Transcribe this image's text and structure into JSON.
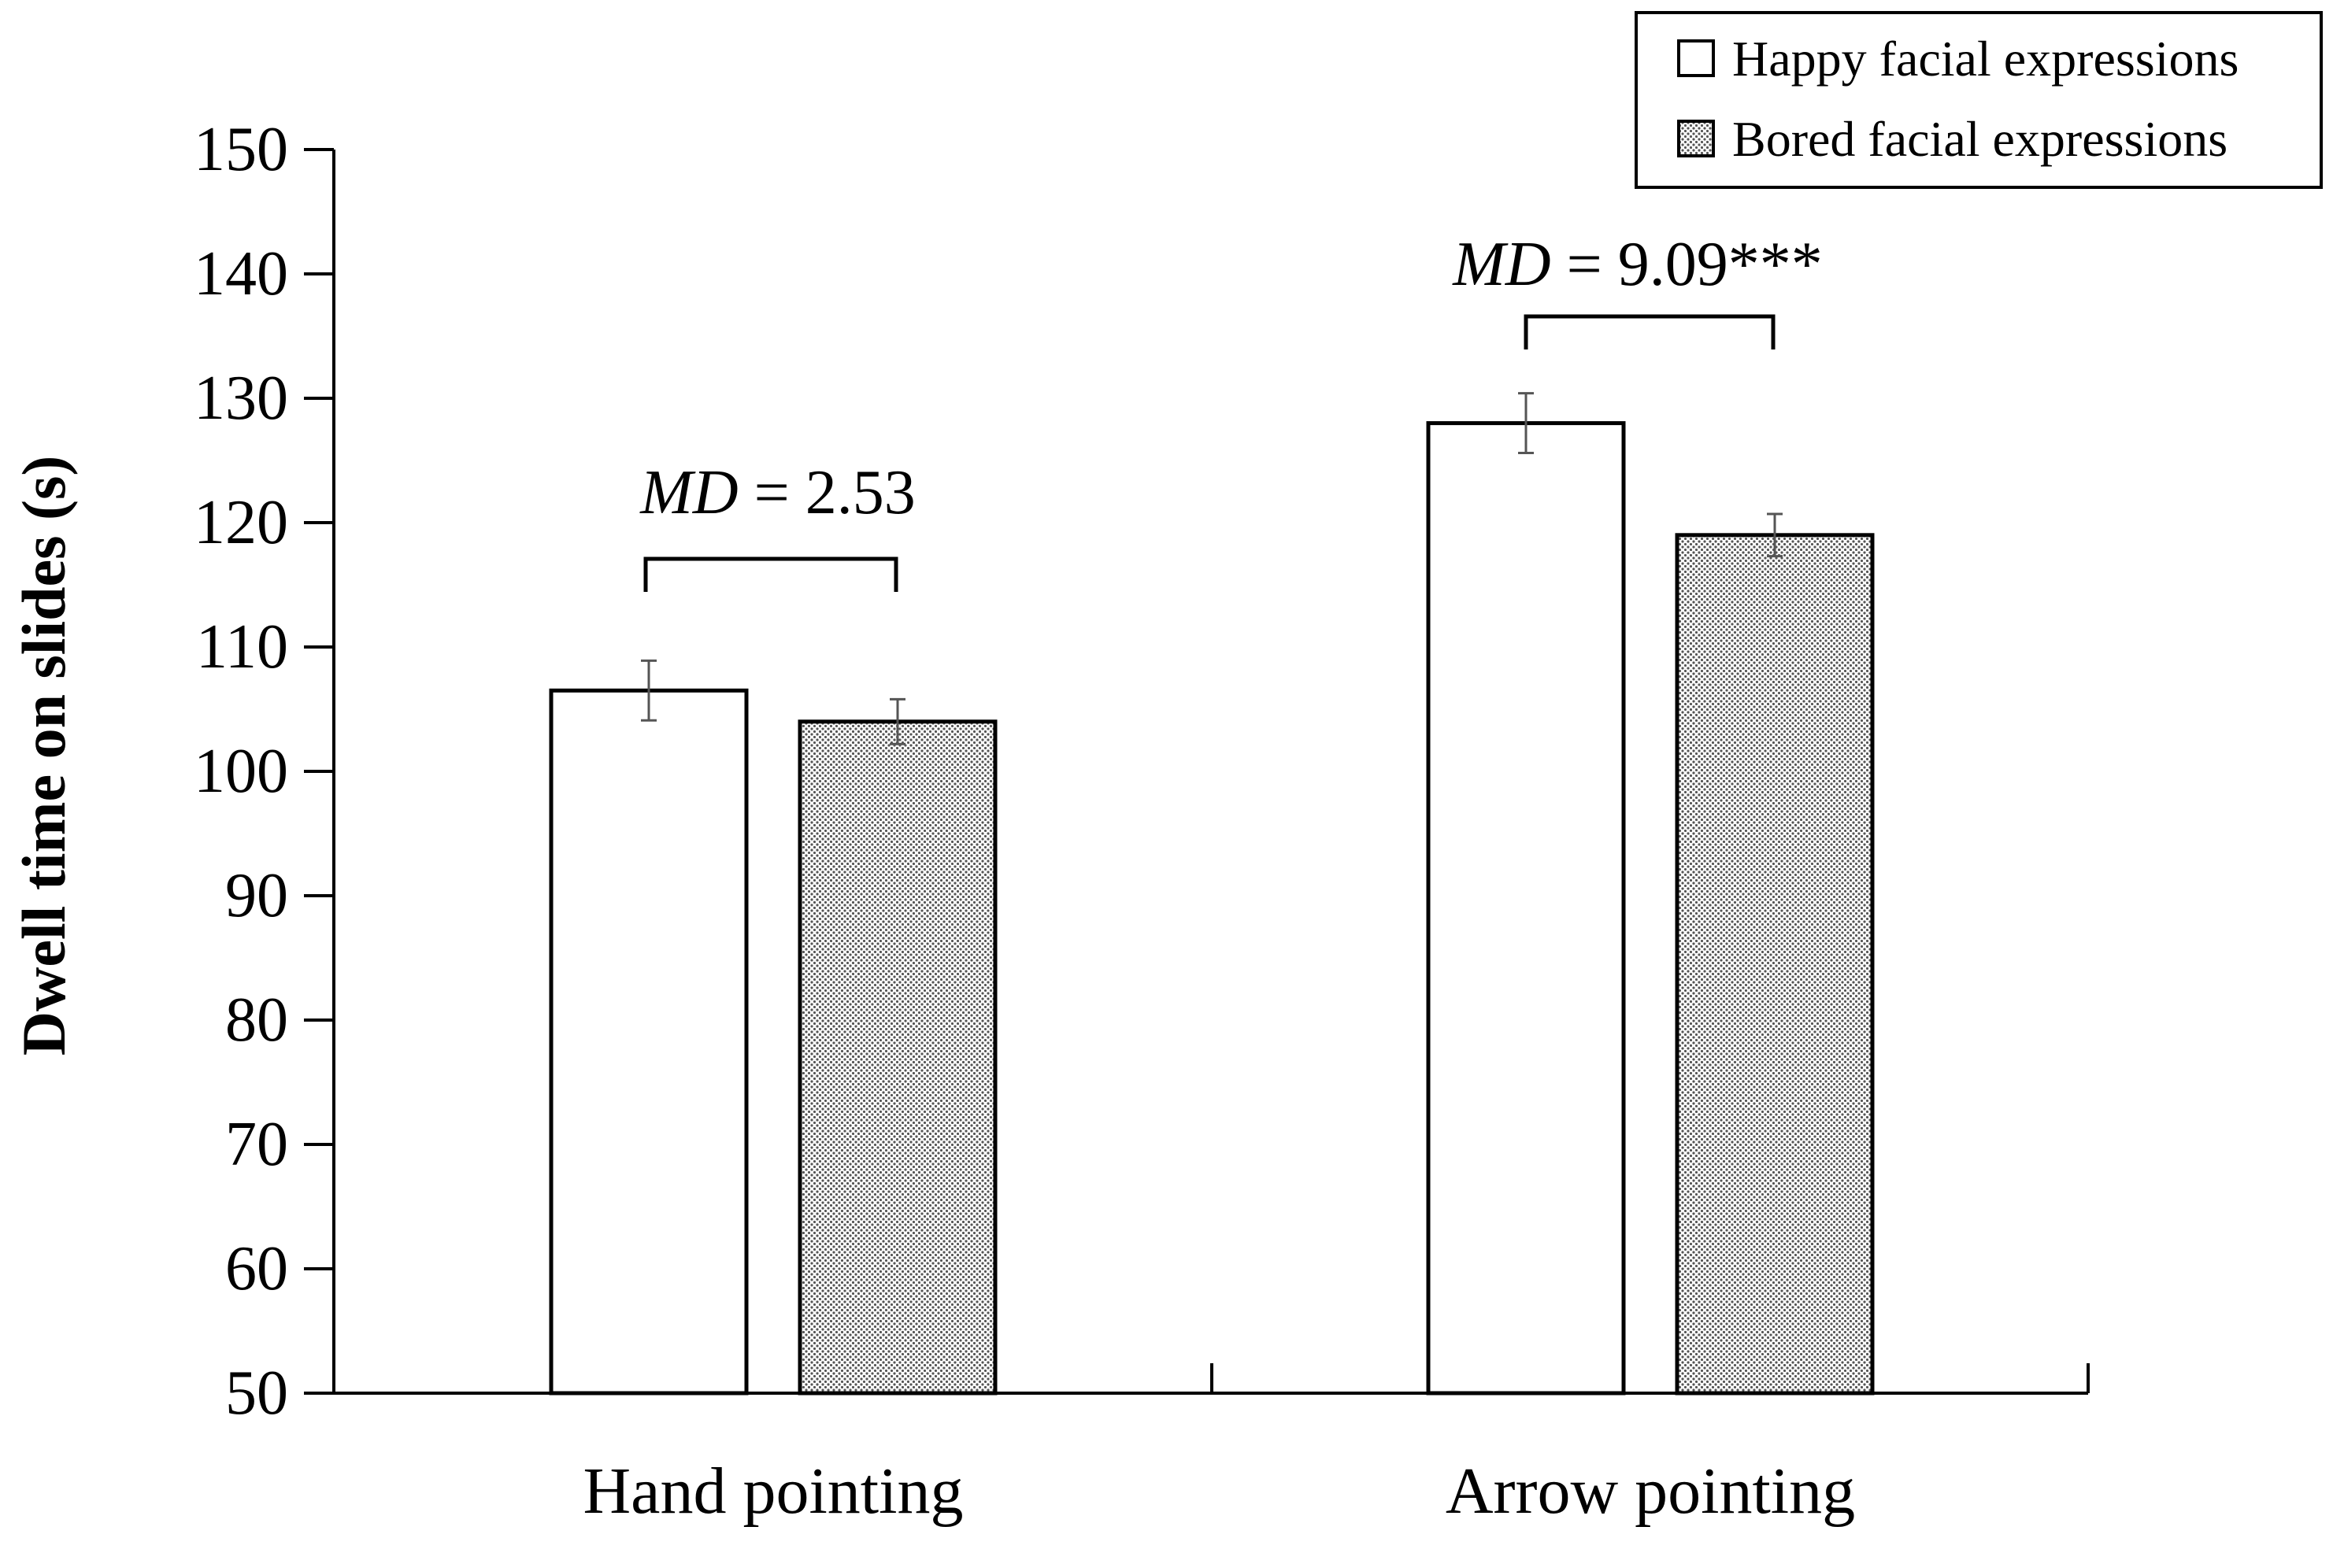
{
  "chart_data": {
    "type": "bar",
    "title": "",
    "xlabel": "",
    "ylabel": "Dwell time on slides (s)",
    "ylim": [
      50,
      150
    ],
    "yticks": [
      50,
      60,
      70,
      80,
      90,
      100,
      110,
      120,
      130,
      140,
      150
    ],
    "grid": false,
    "legend_position": "top-right",
    "categories": [
      "Hand pointing",
      "Arrow pointing"
    ],
    "series": [
      {
        "name": "Happy facial expressions",
        "fill": "white",
        "values": [
          106.5,
          128.0
        ],
        "error": [
          2.4,
          2.4
        ]
      },
      {
        "name": "Bored facial expressions",
        "fill": "dotted",
        "values": [
          104.0,
          119.0
        ],
        "error": [
          1.8,
          1.7
        ]
      }
    ],
    "annotations": [
      {
        "category_index": 0,
        "md_label": "MD",
        "md_text": " = 2.53"
      },
      {
        "category_index": 1,
        "md_label": "MD",
        "md_text": " = 9.09***"
      }
    ]
  },
  "colors": {
    "axis": "#000000",
    "bar_stroke": "#000000",
    "happy_fill": "#ffffff",
    "bored_dot": "#555555",
    "bored_bg": "#ffffff",
    "error_bar": "#555555"
  }
}
